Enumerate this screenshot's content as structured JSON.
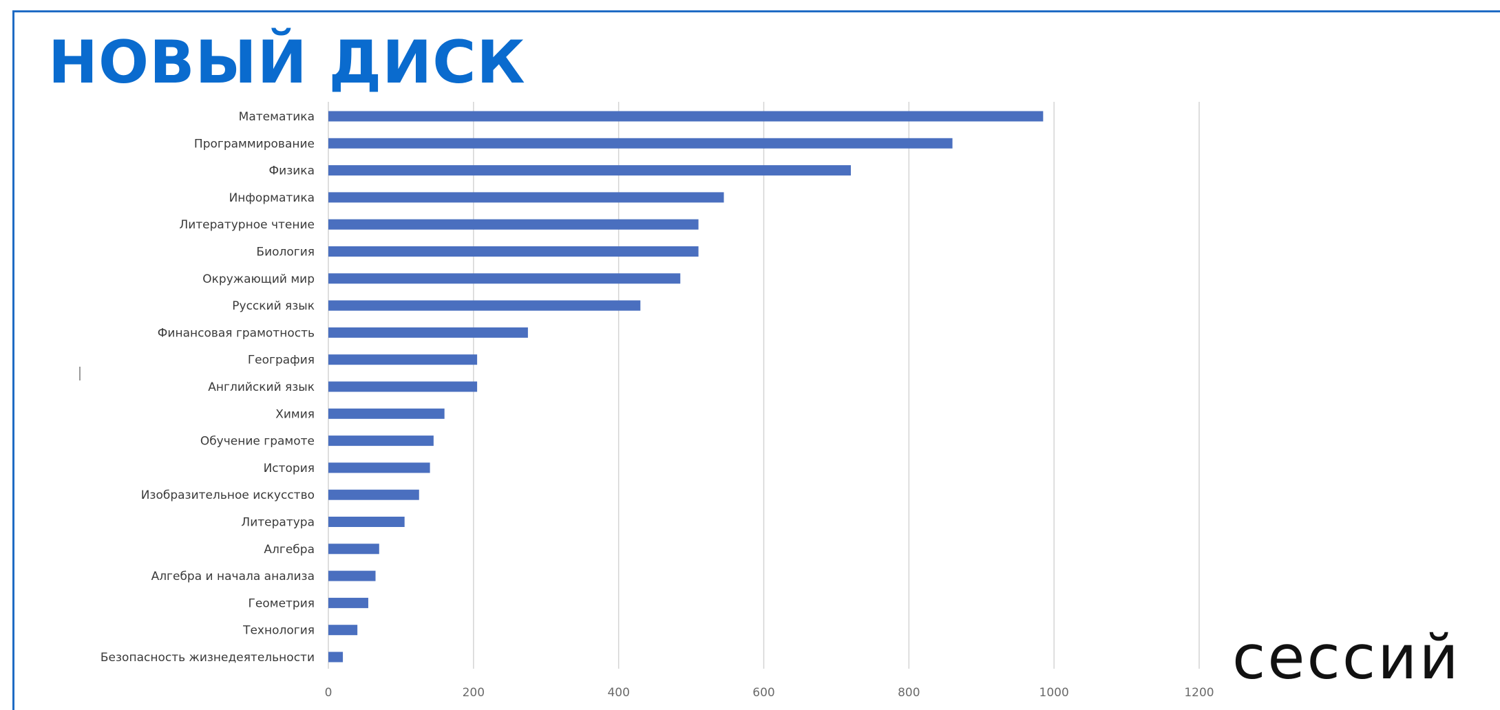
{
  "slide": {
    "title": "НОВЫЙ ДИСК",
    "subtitle": "сессий",
    "frame_color": "#1f6bc4",
    "title_color": "#0a6bce"
  },
  "chart_data": {
    "type": "bar",
    "orientation": "horizontal",
    "title": "",
    "xlabel": "",
    "ylabel": "",
    "xlim": [
      0,
      1200
    ],
    "xticks": [
      0,
      200,
      400,
      600,
      800,
      1000,
      1200
    ],
    "grid": "vertical",
    "bar_color": "#4a6fbf",
    "categories": [
      "Математика",
      "Программирование",
      "Физика",
      "Информатика",
      "Литературное чтение",
      "Биология",
      "Окружающий мир",
      "Русский язык",
      "Финансовая грамотность",
      "География",
      "Английский язык",
      "Химия",
      "Обучение грамоте",
      "История",
      "Изобразительное искусство",
      "Литература",
      "Алгебра",
      "Алгебра и начала анализа",
      "Геометрия",
      "Технология",
      "Безопасность жизнедеятельности"
    ],
    "values": [
      985,
      860,
      720,
      545,
      510,
      510,
      485,
      430,
      275,
      205,
      205,
      160,
      145,
      140,
      125,
      105,
      70,
      65,
      55,
      40,
      20
    ]
  }
}
